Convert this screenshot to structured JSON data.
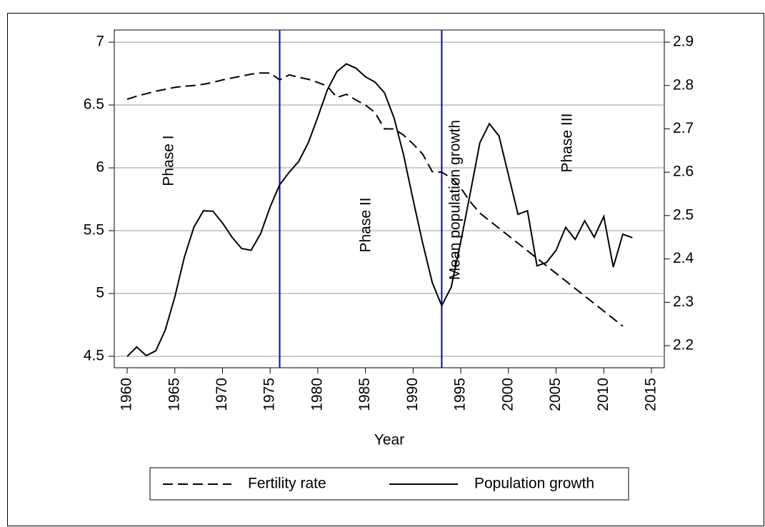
{
  "chart_data": {
    "type": "line",
    "x_label": "Year",
    "x": [
      1960,
      1961,
      1962,
      1963,
      1964,
      1965,
      1966,
      1967,
      1968,
      1969,
      1970,
      1971,
      1972,
      1973,
      1974,
      1975,
      1976,
      1977,
      1978,
      1979,
      1980,
      1981,
      1982,
      1983,
      1984,
      1985,
      1986,
      1987,
      1988,
      1989,
      1990,
      1991,
      1992,
      1993,
      1994,
      1995,
      1996,
      1997,
      1998,
      1999,
      2000,
      2001,
      2002,
      2003,
      2004,
      2005,
      2006,
      2007,
      2008,
      2009,
      2010,
      2011,
      2012,
      2013
    ],
    "xlim": [
      1958.65,
      2016.35
    ],
    "xticks": [
      1960,
      1965,
      1970,
      1975,
      1980,
      1985,
      1990,
      1995,
      2000,
      2005,
      2010,
      2015
    ],
    "ylim": [
      4.409,
      7.097
    ],
    "yticks": [
      4.5,
      5,
      5.5,
      6,
      6.5,
      7
    ],
    "y2lim": [
      2.149,
      2.928
    ],
    "y2ticks": [
      2.2,
      2.3,
      2.4,
      2.5,
      2.6,
      2.7,
      2.8,
      2.9
    ],
    "grid": true,
    "vlines": [
      1976,
      1993
    ],
    "vline_color": "#0000cc",
    "annotations": [
      "Phase I",
      "Phase II",
      "Mean population growth",
      "Phase III"
    ],
    "series": [
      {
        "name": "Fertility rate",
        "color": "#000000",
        "dash": true,
        "axis": "y",
        "values": [
          6.545,
          6.57,
          6.59,
          6.61,
          6.625,
          6.64,
          6.65,
          6.655,
          6.665,
          6.68,
          6.7,
          6.715,
          6.73,
          6.745,
          6.755,
          6.755,
          6.7,
          6.74,
          6.72,
          6.705,
          6.68,
          6.65,
          6.56,
          6.585,
          6.54,
          6.5,
          6.44,
          6.31,
          6.31,
          6.26,
          6.19,
          6.11,
          5.97,
          5.965,
          5.92,
          5.84,
          5.73,
          5.64,
          5.58,
          5.52,
          5.46,
          5.4,
          5.34,
          5.28,
          5.22,
          5.16,
          5.1,
          5.04,
          4.98,
          4.92,
          4.86,
          4.8,
          4.74,
          null
        ]
      },
      {
        "name": "Population growth",
        "color": "#000000",
        "dash": false,
        "axis": "y2",
        "values": [
          2.175,
          2.197,
          2.177,
          2.188,
          2.236,
          2.312,
          2.404,
          2.473,
          2.511,
          2.51,
          2.483,
          2.45,
          2.424,
          2.42,
          2.458,
          2.52,
          2.571,
          2.6,
          2.625,
          2.668,
          2.727,
          2.79,
          2.832,
          2.85,
          2.84,
          2.82,
          2.808,
          2.783,
          2.725,
          2.64,
          2.536,
          2.437,
          2.346,
          2.292,
          2.335,
          2.44,
          2.552,
          2.668,
          2.712,
          2.684,
          2.594,
          2.503,
          2.511,
          2.384,
          2.392,
          2.42,
          2.473,
          2.445,
          2.488,
          2.45,
          2.498,
          2.381,
          2.457,
          2.449
        ]
      }
    ]
  }
}
